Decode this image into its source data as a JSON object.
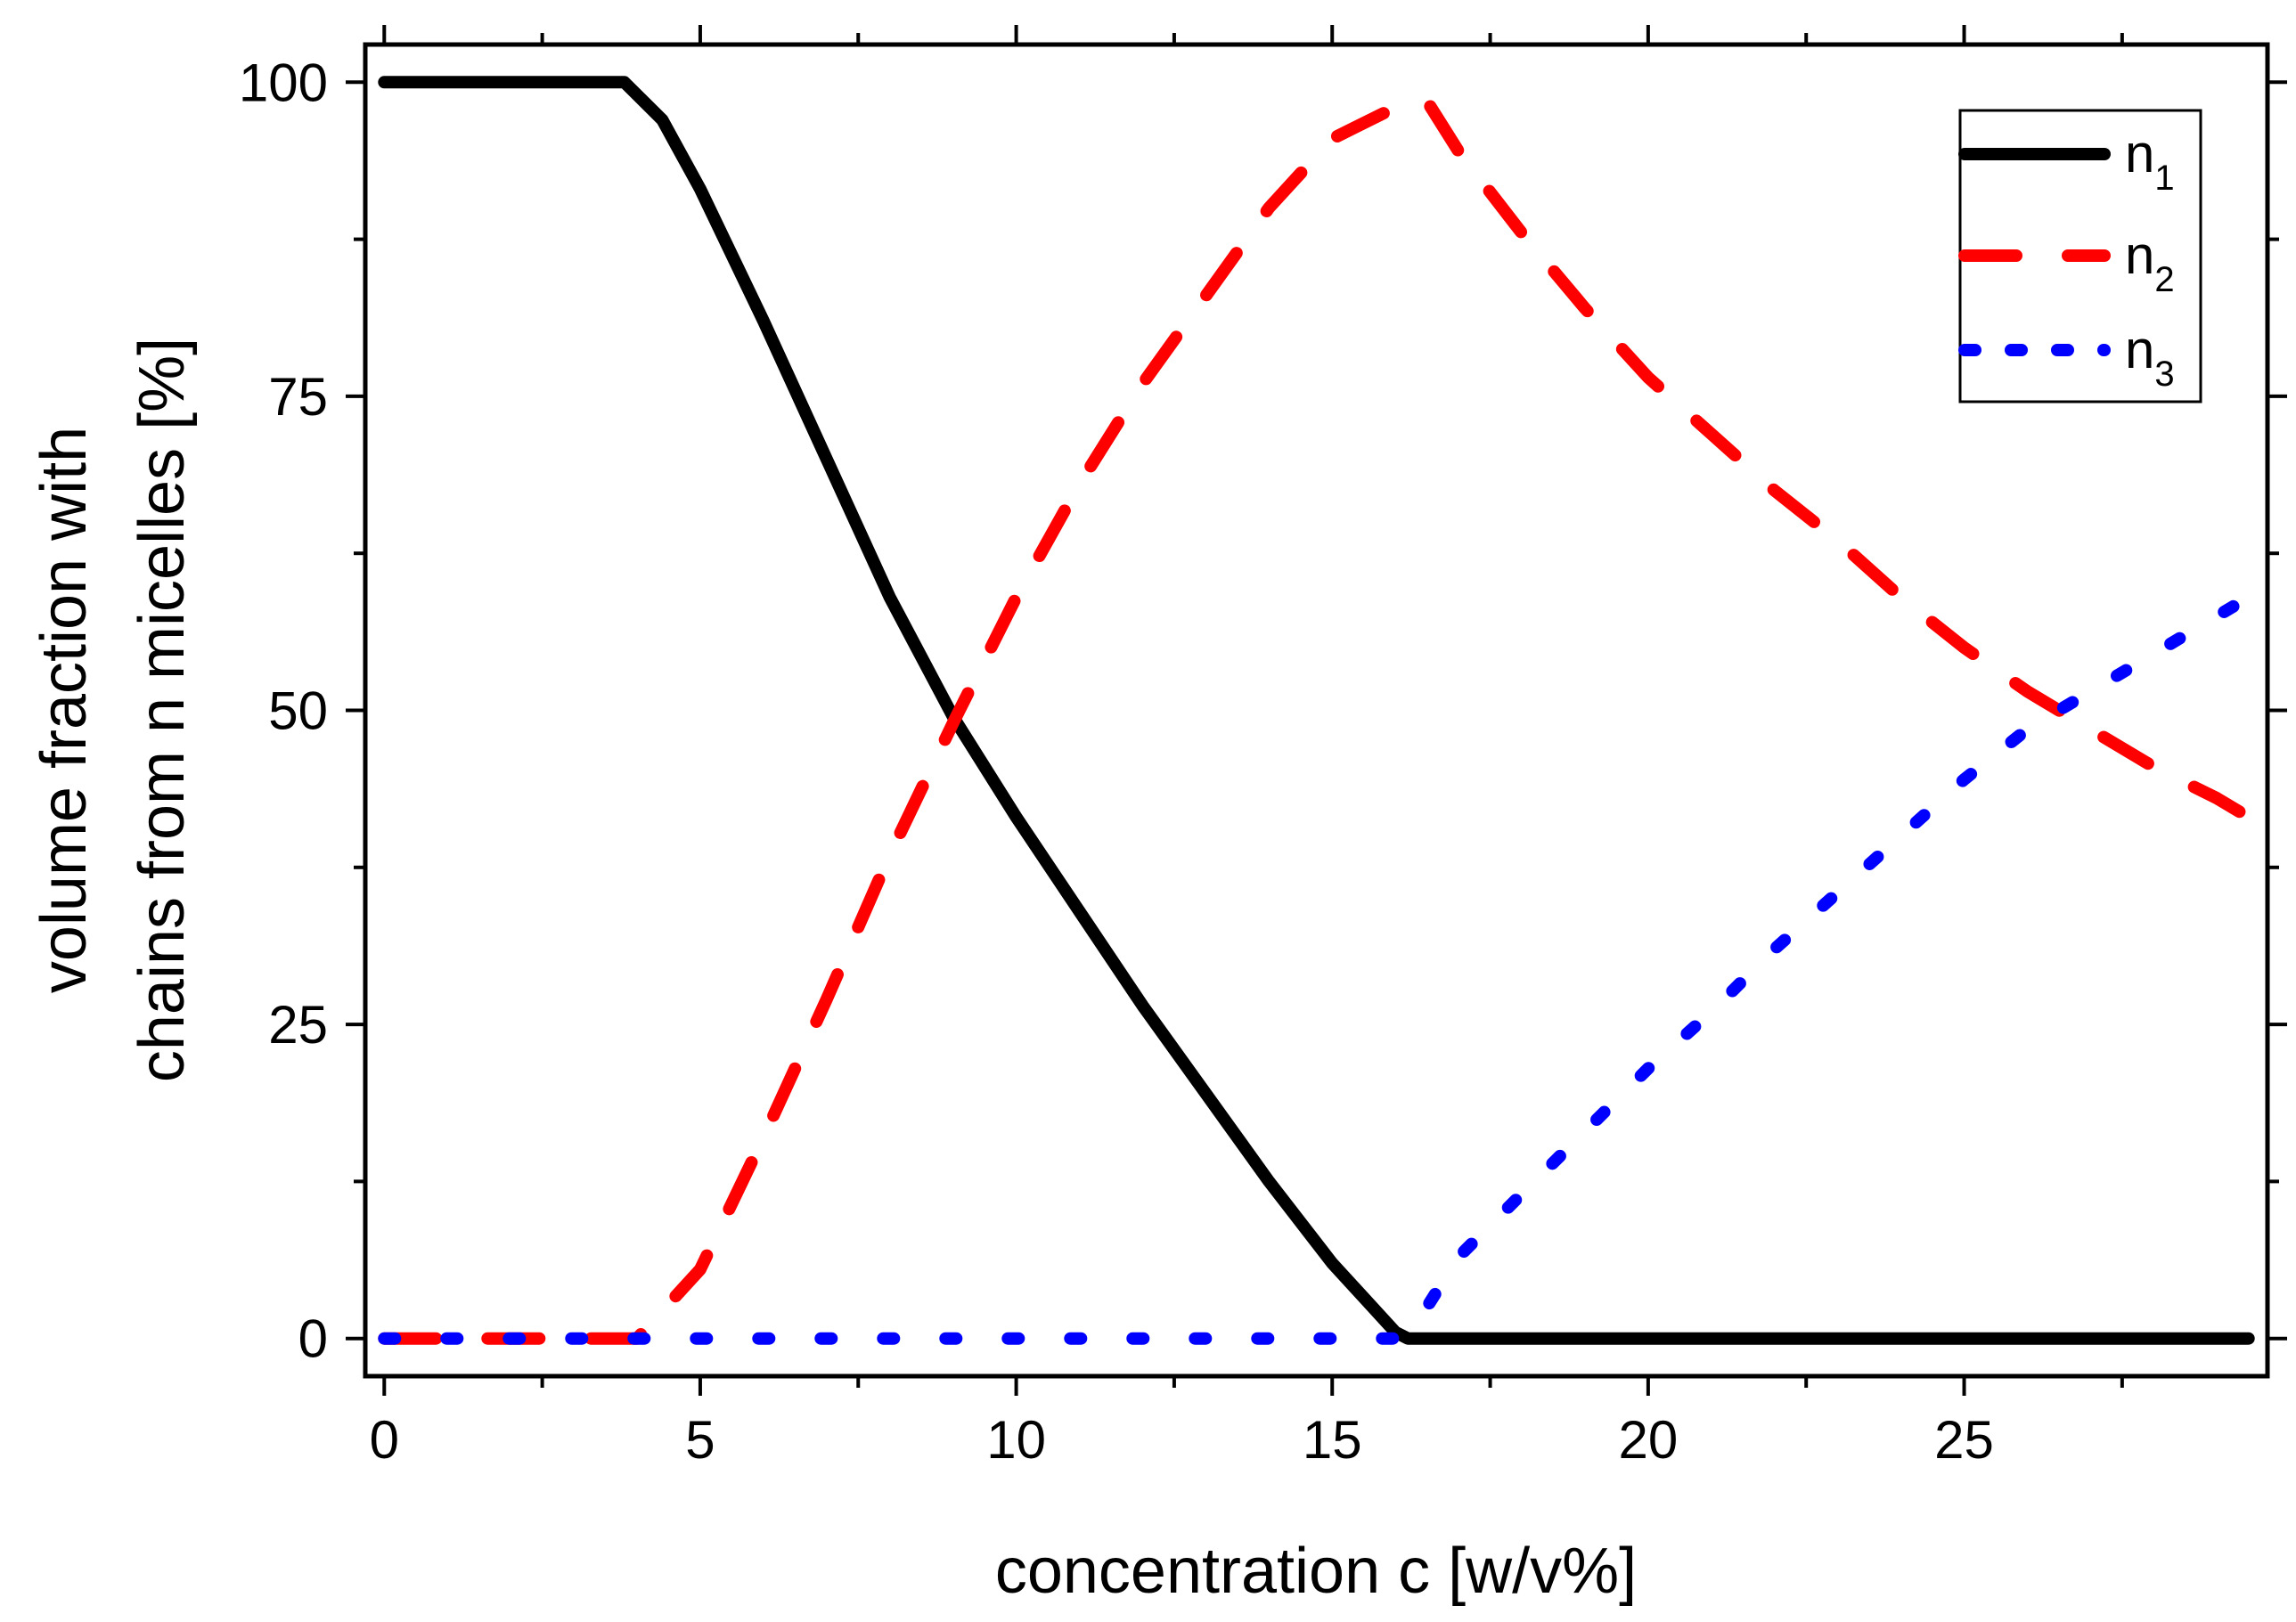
{
  "chart_data": {
    "type": "line",
    "title": "",
    "xlabel": "concentration c [w/v%]",
    "ylabel_line1": "volume fraction with",
    "ylabel_line2": "chains from n micelles [%]",
    "xlim": [
      -0.3,
      29.8
    ],
    "ylim": [
      -3,
      103
    ],
    "x_ticks": [
      0,
      5,
      10,
      15,
      20,
      25
    ],
    "x_tick_labels": [
      "0",
      "5",
      "10",
      "15",
      "20",
      "25"
    ],
    "x_minor_ticks": [
      2.5,
      7.5,
      12.5,
      17.5,
      22.5,
      27.5
    ],
    "y_ticks": [
      0,
      25,
      50,
      75,
      100
    ],
    "y_tick_labels": [
      "0",
      "25",
      "50",
      "75",
      "100"
    ],
    "y_minor_ticks": [
      12.5,
      37.5,
      62.5,
      87.5
    ],
    "legend_position": "top-right",
    "series": [
      {
        "name": "n",
        "subscript": "1",
        "color": "#000000",
        "style": "solid",
        "x": [
          0,
          3.8,
          4.4,
          5,
          6,
          7,
          8,
          9,
          10,
          11,
          12,
          13,
          14,
          15,
          16,
          16.2,
          17,
          20,
          25,
          29.5
        ],
        "y": [
          100,
          100,
          97,
          91.5,
          81,
          70,
          59,
          49.5,
          41.5,
          34,
          26.5,
          19.5,
          12.5,
          6,
          0.5,
          0,
          0,
          0,
          0,
          0
        ]
      },
      {
        "name": "n",
        "subscript": "2",
        "color": "#ff0000",
        "style": "dashed",
        "x": [
          0,
          4,
          5,
          6,
          7,
          8,
          9,
          10,
          11,
          12,
          13,
          14,
          15,
          16,
          16.5,
          17,
          18,
          19,
          20,
          21,
          22,
          23,
          24,
          25,
          26,
          27,
          28,
          29,
          29.5
        ],
        "y": [
          0,
          0,
          5.5,
          16,
          27,
          38.5,
          49,
          59,
          68,
          76,
          83,
          90,
          95.5,
          98,
          98.5,
          94.5,
          88,
          82,
          76.5,
          72,
          67.5,
          63.5,
          59,
          55,
          51.5,
          48.5,
          45.5,
          43,
          41.5
        ]
      },
      {
        "name": "n",
        "subscript": "3",
        "color": "#0000ff",
        "style": "dotted",
        "x": [
          0,
          16,
          16.5,
          17,
          18,
          19,
          20,
          21,
          22,
          23,
          24,
          25,
          26,
          27,
          28,
          29,
          29.5
        ],
        "y": [
          0,
          0,
          2.5,
          6.5,
          11.5,
          16.5,
          21.5,
          26,
          31,
          35.5,
          40,
          44.5,
          48.5,
          51.5,
          54.5,
          57.5,
          59
        ]
      }
    ]
  }
}
